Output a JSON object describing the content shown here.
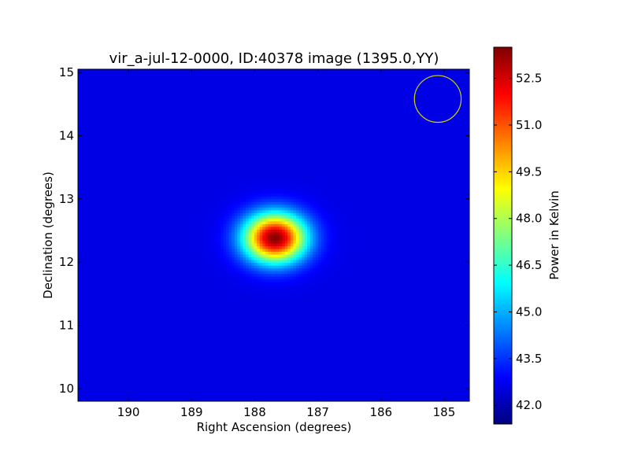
{
  "chart_data": {
    "type": "heatmap",
    "title": "vir_a-jul-12-0000, ID:40378 image (1395.0,YY)",
    "xlabel": "Right Ascension (degrees)",
    "ylabel": "Declination (degrees)",
    "x_reversed": true,
    "xlim": [
      190.8,
      184.6
    ],
    "ylim": [
      9.8,
      15.05
    ],
    "xticks": [
      190,
      189,
      188,
      187,
      186,
      185
    ],
    "xtick_labels": [
      "190",
      "189",
      "188",
      "187",
      "186",
      "185"
    ],
    "yticks": [
      10,
      11,
      12,
      13,
      14,
      15
    ],
    "ytick_labels": [
      "10",
      "11",
      "12",
      "13",
      "14",
      "15"
    ],
    "colormap": "jet",
    "grid": false,
    "colorbar": {
      "label": "Power in Kelvin",
      "range": [
        41.4,
        53.5
      ],
      "ticks": [
        42.0,
        43.5,
        45.0,
        46.5,
        48.0,
        49.5,
        51.0,
        52.5
      ],
      "tick_labels": [
        "42.0",
        "43.5",
        "45.0",
        "46.5",
        "48.0",
        "49.5",
        "51.0",
        "52.5"
      ]
    },
    "field": {
      "background_kelvin": 42.6,
      "source": {
        "ra_deg": 187.68,
        "dec_deg": 12.38,
        "peak_kelvin": 53.4,
        "sigma_ra_deg": 0.34,
        "sigma_dec_deg": 0.27
      }
    },
    "beam_marker": {
      "ra_deg": 185.1,
      "dec_deg": 14.58,
      "radius_deg": 0.37,
      "color": "#d6d600"
    }
  }
}
